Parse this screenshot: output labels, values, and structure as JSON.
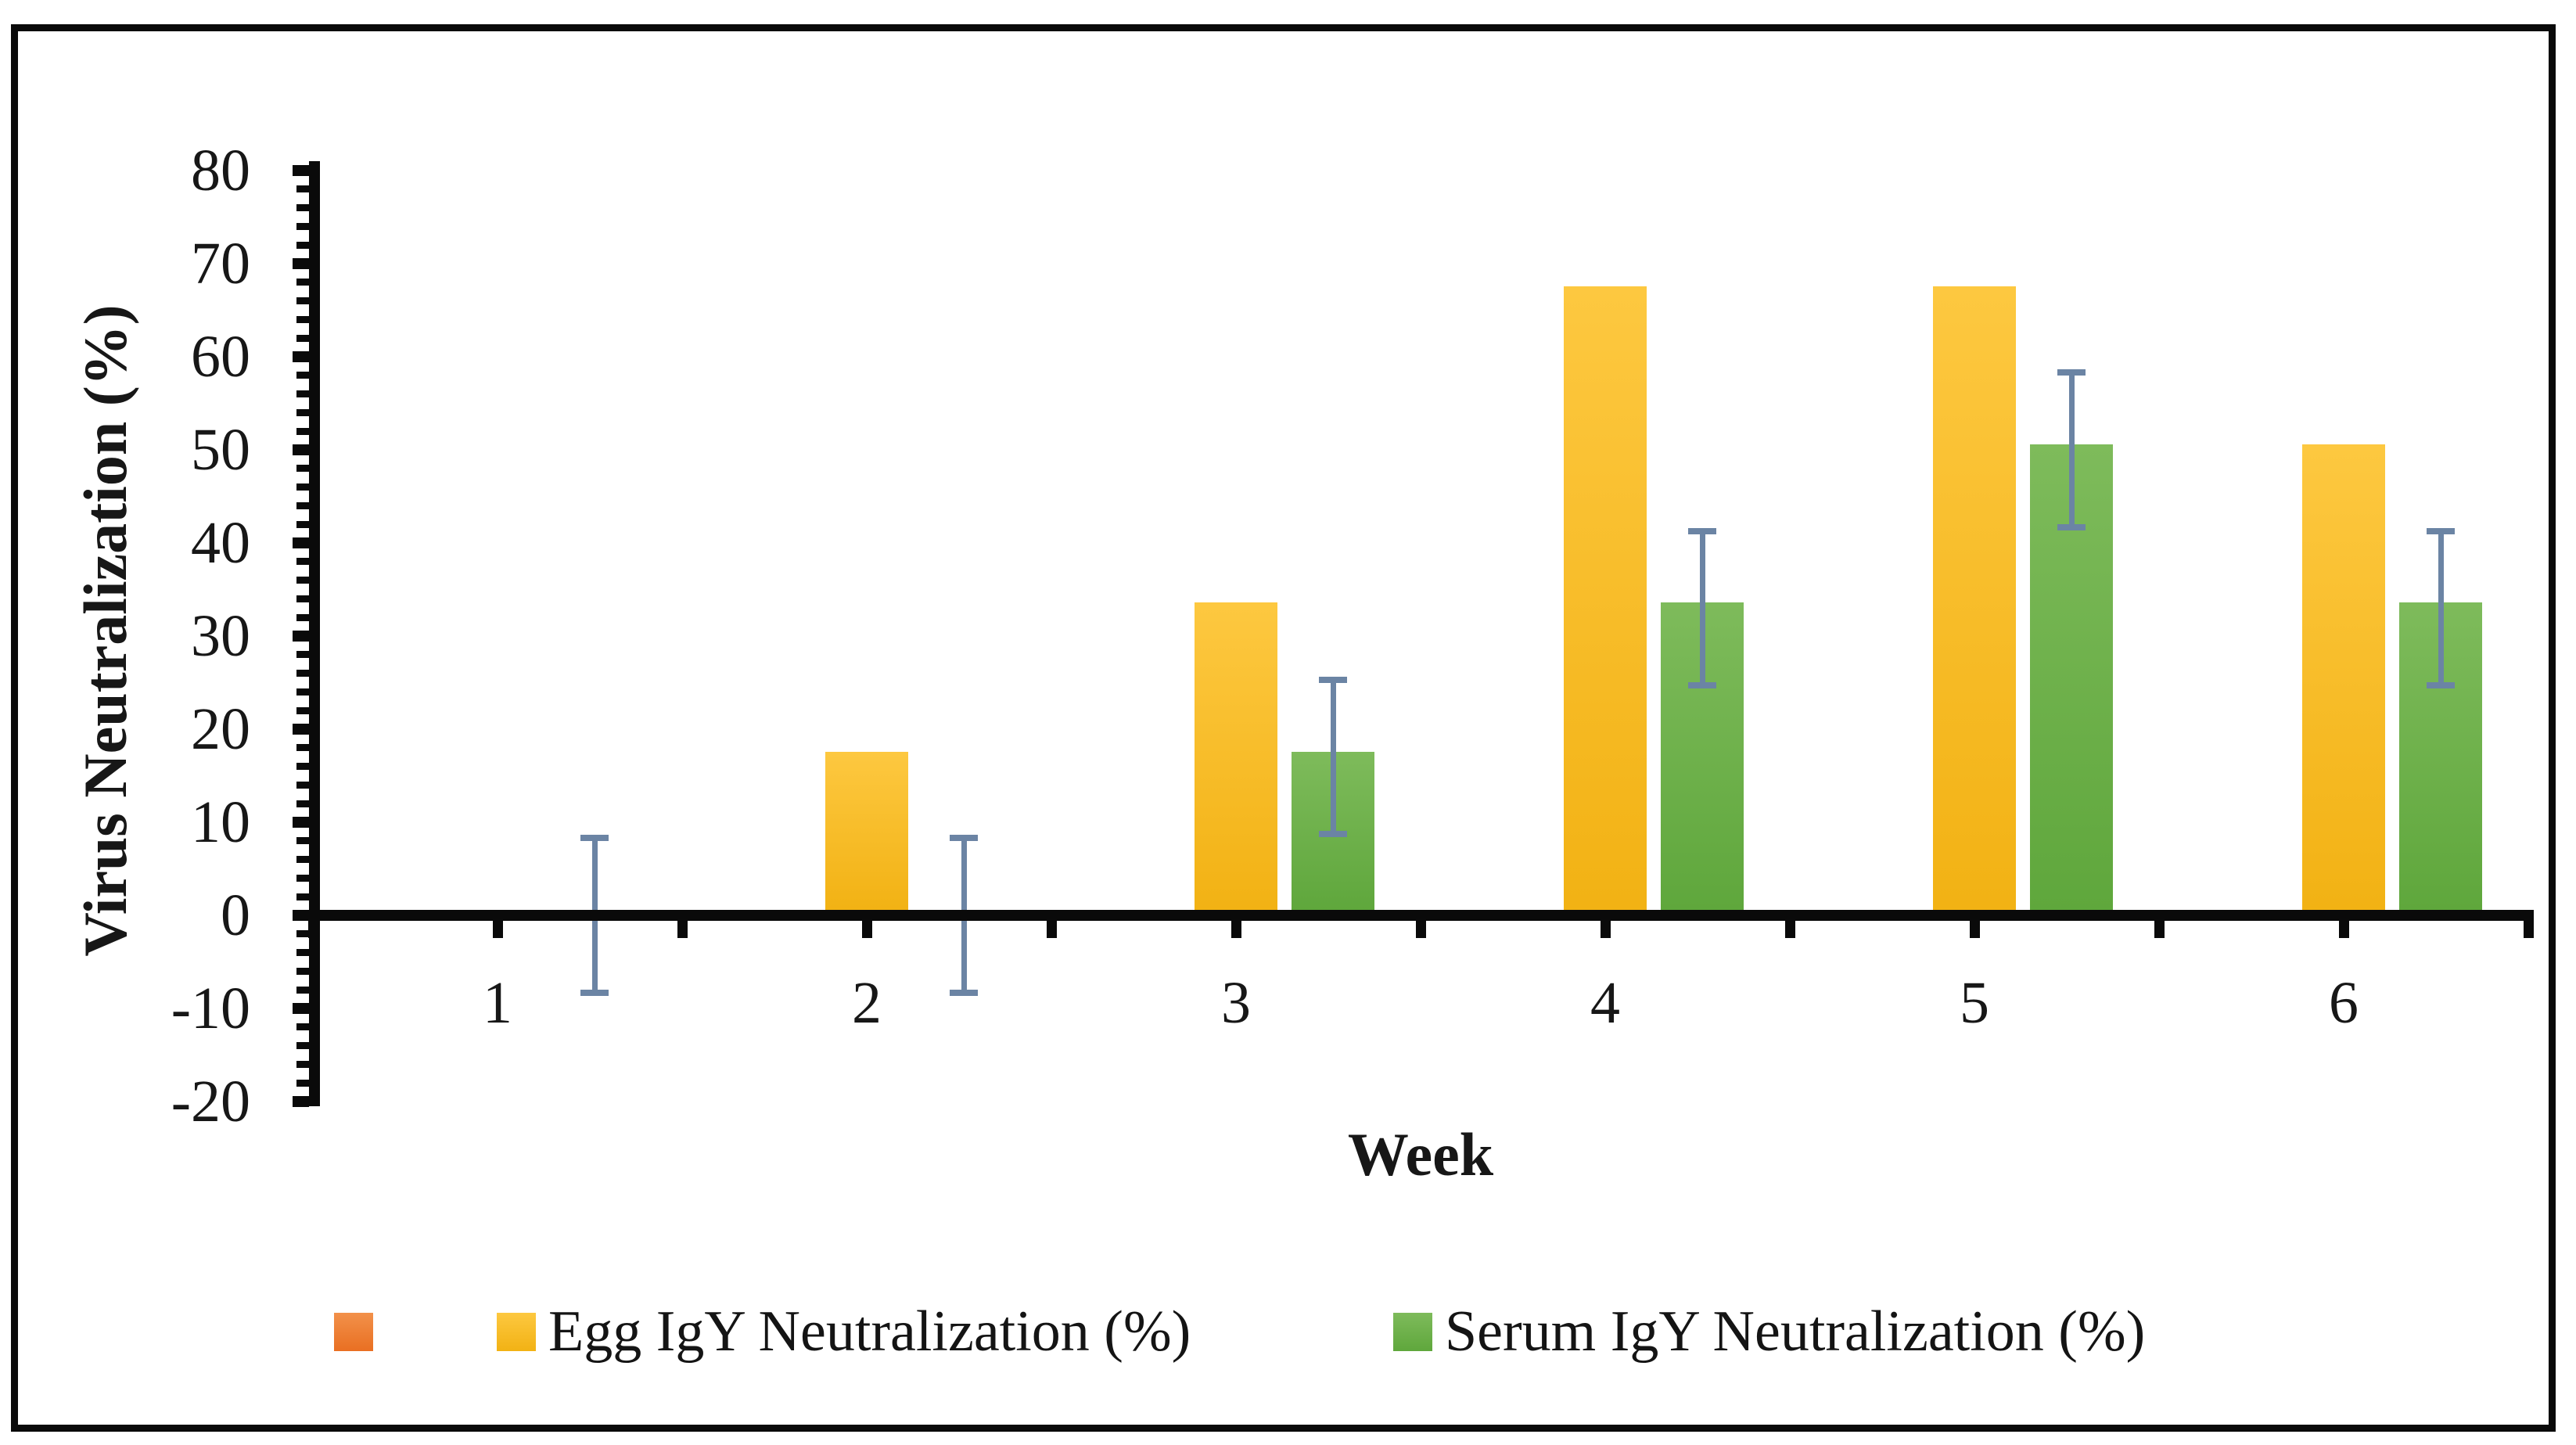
{
  "figure": {
    "background_color": "#FFFFFF",
    "border_color": "#0A0A0A"
  },
  "chart_data": {
    "type": "bar",
    "title": "",
    "xlabel": "Week",
    "ylabel": "Virus Neutralization (%)",
    "categories": [
      "1",
      "2",
      "3",
      "4",
      "5",
      "6"
    ],
    "x_tick_labels": [
      "1",
      "2",
      "3",
      "4",
      "5",
      "6"
    ],
    "y_tick_labels": [
      "80",
      "70",
      "60",
      "50",
      "40",
      "30",
      "20",
      "10",
      "0",
      "-10",
      "-20"
    ],
    "y_tick_values": [
      80,
      70,
      60,
      50,
      40,
      30,
      20,
      10,
      0,
      -10,
      -20
    ],
    "ylim": [
      -20,
      80
    ],
    "y_major_step": 10,
    "y_minor_step": 2,
    "grid": false,
    "legend_position": "bottom",
    "series": [
      {
        "key": "blank",
        "name": "",
        "values": [
          0,
          0,
          0,
          0,
          0,
          0
        ],
        "errors": null,
        "color_top": "#F2914A",
        "color_bottom": "#E96F22"
      },
      {
        "key": "egg",
        "name": "Egg IgY Neutralization (%)",
        "values": [
          0,
          17,
          33,
          67,
          67,
          50
        ],
        "errors": null,
        "color_top": "#FDC840",
        "color_bottom": "#F2B214"
      },
      {
        "key": "serum",
        "name": "Serum IgY Neutralization (%)",
        "values": [
          0,
          0,
          17,
          33,
          50,
          33
        ],
        "errors": [
          8.3,
          8.3,
          8.3,
          8.3,
          8.3,
          8.3
        ],
        "color_top": "#7EBB5B",
        "color_bottom": "#5FA73C"
      }
    ],
    "error_bar_color": "#6B84A4",
    "axis_color": "#0A0A0A"
  }
}
